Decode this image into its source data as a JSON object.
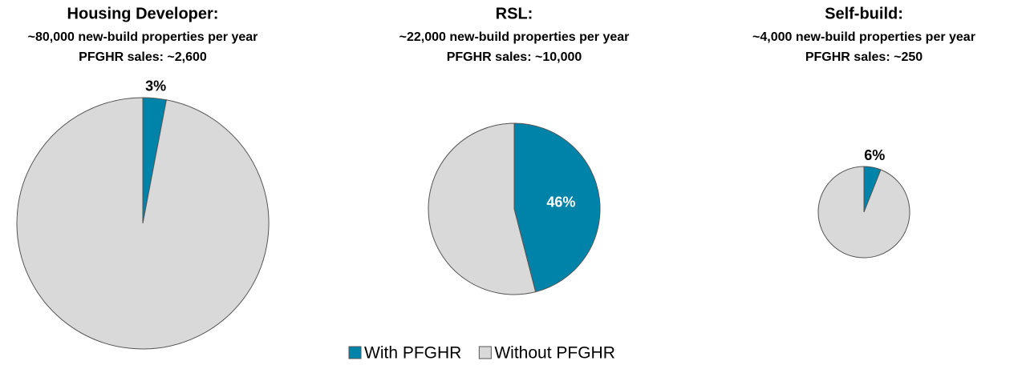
{
  "chart_data": [
    {
      "type": "pie",
      "title": "Housing Developer:",
      "subtitle": "~80,000 new-build properties per year",
      "note": "PFGHR sales: ~2,600",
      "values": [
        3,
        97
      ],
      "value_labels": [
        "3%",
        null
      ]
    },
    {
      "type": "pie",
      "title": "RSL:",
      "subtitle": "~22,000 new-build properties per year",
      "note": "PFGHR sales: ~10,000",
      "values": [
        46,
        54
      ],
      "value_labels": [
        "46%",
        null
      ]
    },
    {
      "type": "pie",
      "title": "Self-build:",
      "subtitle": "~4,000 new-build properties per year",
      "note": "PFGHR sales: ~250",
      "values": [
        6,
        94
      ],
      "value_labels": [
        "6%",
        null
      ]
    }
  ],
  "legend": {
    "entries": [
      {
        "name": "With PFGHR",
        "color": "#0083a9"
      },
      {
        "name": "Without PFGHR",
        "color": "#d9d9d9"
      }
    ]
  }
}
